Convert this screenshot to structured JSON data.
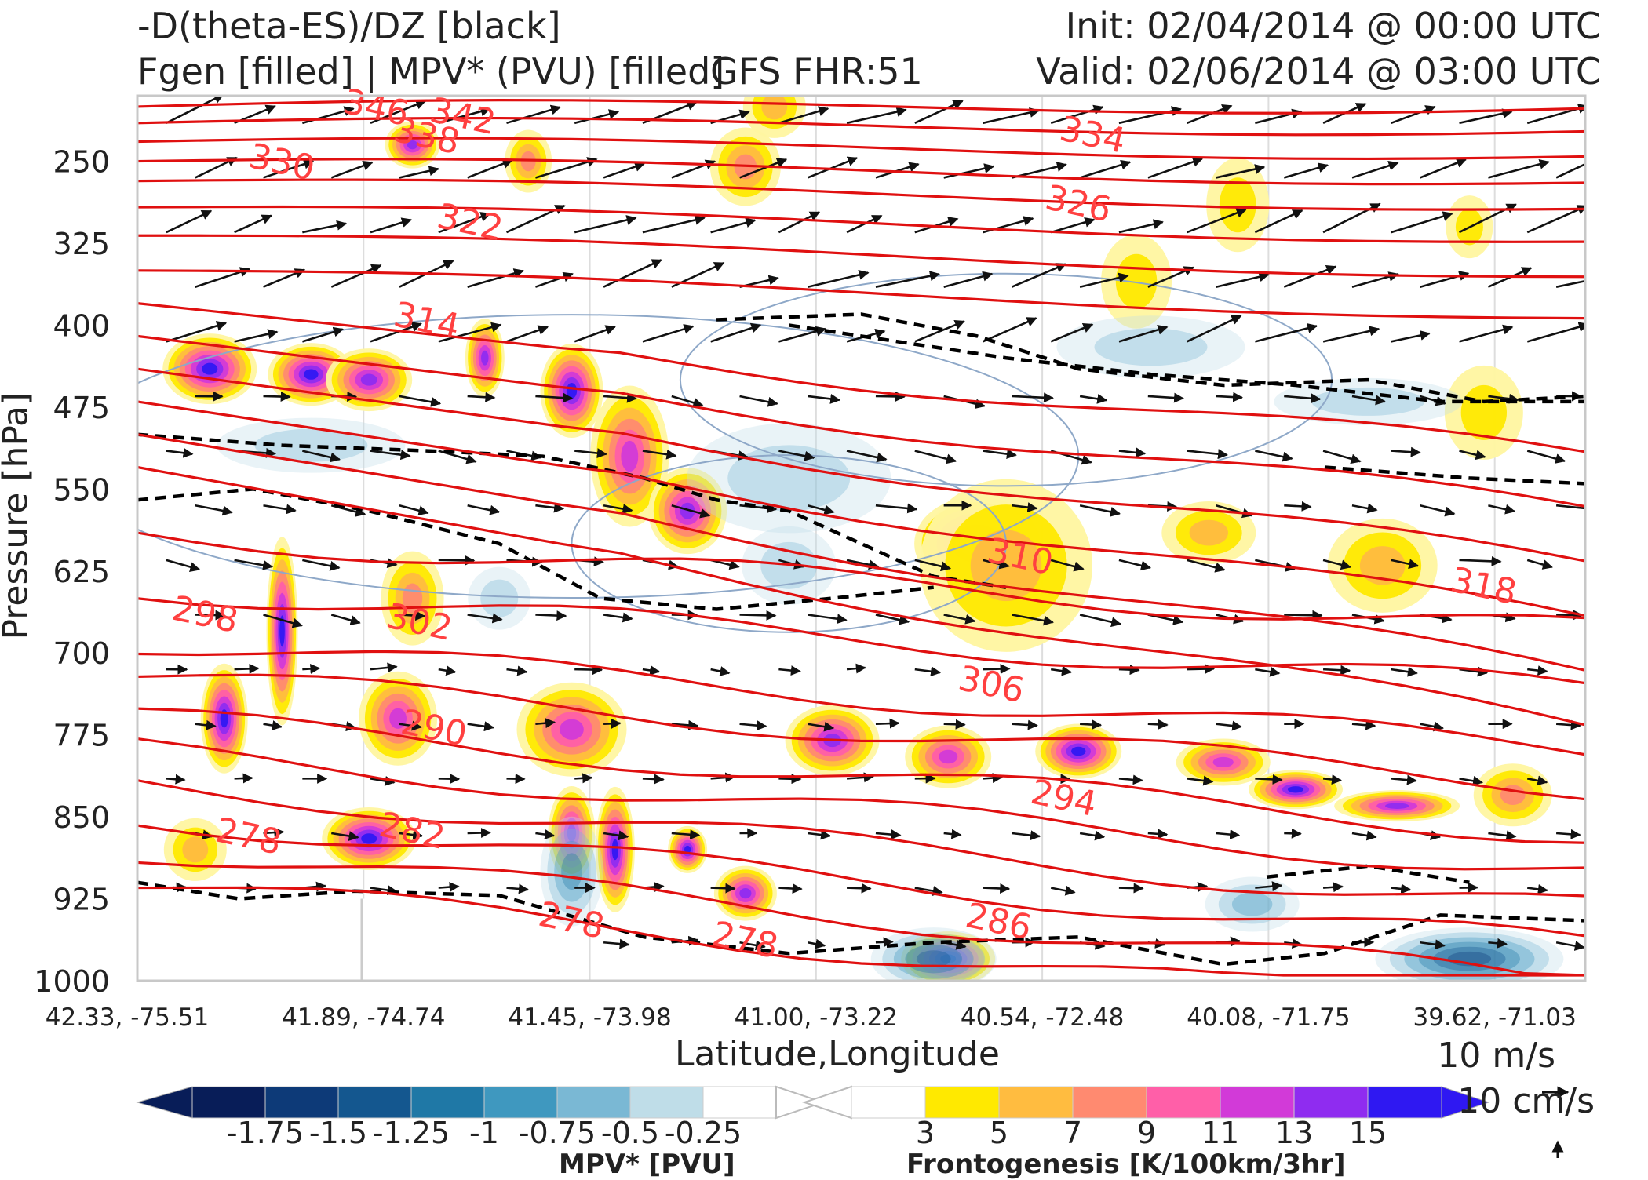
{
  "header": {
    "title_left_1": "-D(theta-ES)/DZ [black]",
    "title_left_2": "Fgen [filled] | MPV* (PVU) [filled]",
    "model": "GFS FHR:51",
    "init": "Init: 02/04/2014 @ 00:00 UTC",
    "valid": "Valid: 02/06/2014 @ 03:00 UTC"
  },
  "colors": {
    "theta_contour": "#e01010",
    "stability_contour": "#000000",
    "mpv_contour": "#8ea8c8"
  },
  "chart_data": {
    "type": "cross-section",
    "xlabel": "Latitude,Longitude",
    "ylabel": "Pressure [hPa]",
    "x_ticks": [
      "42.33, -75.51",
      "41.89, -74.74",
      "41.45, -73.98",
      "41.00, -73.22",
      "40.54, -72.48",
      "40.08, -71.75",
      "39.62, -71.03"
    ],
    "y_ticks": [
      250,
      325,
      400,
      475,
      550,
      625,
      700,
      775,
      850,
      925,
      1000
    ],
    "ylim": [
      1000,
      190
    ],
    "grid": true,
    "theta_contour_labels": [
      {
        "text": "346",
        "x": 0.165,
        "p": 200
      },
      {
        "text": "342",
        "x": 0.225,
        "p": 208
      },
      {
        "text": "338",
        "x": 0.2,
        "p": 226
      },
      {
        "text": "330",
        "x": 0.1,
        "p": 250
      },
      {
        "text": "334",
        "x": 0.66,
        "p": 225
      },
      {
        "text": "326",
        "x": 0.65,
        "p": 288
      },
      {
        "text": "322",
        "x": 0.23,
        "p": 305
      },
      {
        "text": "314",
        "x": 0.2,
        "p": 395
      },
      {
        "text": "310",
        "x": 0.61,
        "p": 611
      },
      {
        "text": "318",
        "x": 0.93,
        "p": 638
      },
      {
        "text": "306",
        "x": 0.59,
        "p": 728
      },
      {
        "text": "298",
        "x": 0.047,
        "p": 664
      },
      {
        "text": "302",
        "x": 0.195,
        "p": 671
      },
      {
        "text": "290",
        "x": 0.205,
        "p": 768
      },
      {
        "text": "294",
        "x": 0.64,
        "p": 832
      },
      {
        "text": "278",
        "x": 0.077,
        "p": 867
      },
      {
        "text": "282",
        "x": 0.19,
        "p": 862
      },
      {
        "text": "278",
        "x": 0.3,
        "p": 944
      },
      {
        "text": "278",
        "x": 0.42,
        "p": 962
      },
      {
        "text": "286",
        "x": 0.595,
        "p": 945
      }
    ],
    "fgen_colorbar": {
      "label": "Frontogenesis [K/100km/3hr]",
      "ticks": [
        3,
        5,
        7,
        9,
        11,
        13,
        15
      ],
      "colors": [
        "#fff5a0",
        "#ffe900",
        "#ffbc40",
        "#ff8a70",
        "#ff5fa8",
        "#d23ad8",
        "#8f2cf0",
        "#2f18f2"
      ]
    },
    "mpv_colorbar": {
      "label": "MPV* [PVU]",
      "ticks": [
        -1.75,
        -1.5,
        -1.25,
        -1.0,
        -0.75,
        -0.5,
        -0.25
      ],
      "colors": [
        "#081d58",
        "#0d3a78",
        "#14578f",
        "#1f78a6",
        "#3f98bf",
        "#7ab8d4",
        "#bfdde8",
        "#ffffff"
      ]
    },
    "vector_reference": {
      "horizontal": "10 m/s",
      "vertical": "10 cm/s"
    }
  }
}
